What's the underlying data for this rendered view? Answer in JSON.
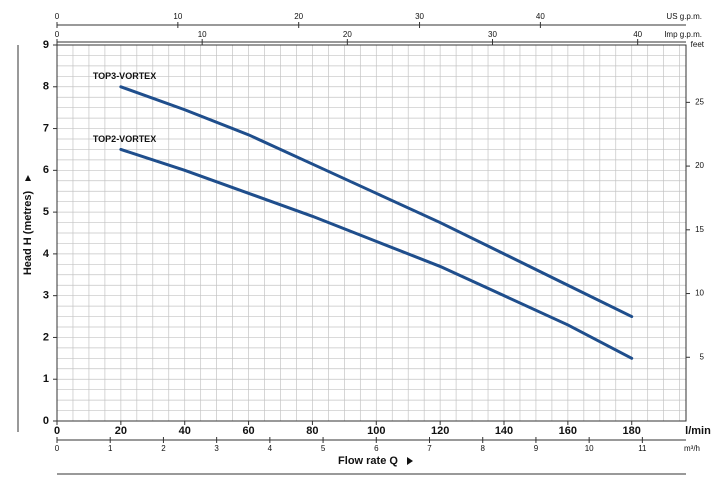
{
  "chart_data": {
    "type": "line",
    "x_label": "Flow rate Q",
    "y_label": "Head H (metres)",
    "x_unit": "l/min",
    "x": [
      20,
      40,
      60,
      80,
      100,
      120,
      140,
      160,
      180
    ],
    "series": [
      {
        "name": "TOP3-VORTEX",
        "color": "#1f4e8c",
        "values": [
          8.0,
          7.45,
          6.85,
          6.15,
          5.45,
          4.75,
          4.0,
          3.25,
          2.5
        ]
      },
      {
        "name": "TOP2-VORTEX",
        "color": "#1f4e8c",
        "values": [
          6.5,
          6.0,
          5.45,
          4.9,
          4.3,
          3.7,
          3.0,
          2.3,
          1.5
        ]
      }
    ],
    "xlim": [
      0,
      197
    ],
    "xticks": [
      0,
      20,
      40,
      60,
      80,
      100,
      120,
      140,
      160,
      180
    ],
    "ylim": [
      0,
      9
    ],
    "yticks": [
      0,
      1,
      2,
      3,
      4,
      5,
      6,
      7,
      8,
      9
    ],
    "y2_label": "feet",
    "y2lim": [
      0,
      29.5
    ],
    "y2ticks": [
      5,
      10,
      15,
      20,
      25
    ],
    "top_axes": [
      {
        "label": "US g.p.m.",
        "lim": [
          0,
          52.05
        ],
        "ticks": [
          0,
          10,
          20,
          30,
          40
        ]
      },
      {
        "label": "Imp g.p.m.",
        "lim": [
          0,
          43.33
        ],
        "ticks": [
          0,
          10,
          20,
          30,
          40
        ]
      }
    ],
    "bottom_axis": {
      "label": "m³/h",
      "lim": [
        0,
        11.82
      ],
      "ticks": [
        0,
        1,
        2,
        3,
        4,
        5,
        6,
        7,
        8,
        9,
        10,
        11
      ]
    },
    "grid": true,
    "x_minor_step": 5,
    "y_minor_step": 0.25
  }
}
